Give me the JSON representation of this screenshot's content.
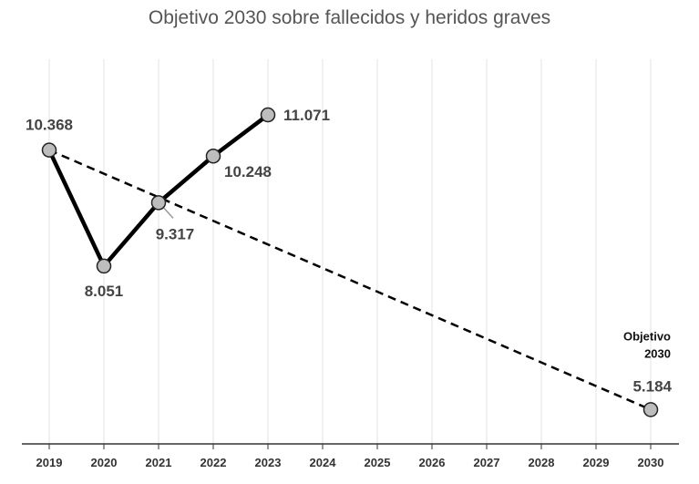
{
  "chart_data": {
    "type": "line",
    "title": "Objetivo 2030 sobre fallecidos y heridos graves",
    "x": [
      "2019",
      "2020",
      "2021",
      "2022",
      "2023",
      "2024",
      "2025",
      "2026",
      "2027",
      "2028",
      "2029",
      "2030"
    ],
    "series": [
      {
        "style": "solid",
        "points": [
          {
            "x": "2019",
            "y": 10368,
            "label": "10.368"
          },
          {
            "x": "2020",
            "y": 8051,
            "label": "8.051"
          },
          {
            "x": "2021",
            "y": 9317,
            "label": "9.317"
          },
          {
            "x": "2022",
            "y": 10248,
            "label": "10.248"
          },
          {
            "x": "2023",
            "y": 11071,
            "label": "11.071"
          }
        ]
      },
      {
        "style": "dashed",
        "points": [
          {
            "x": "2019",
            "y": 10368
          },
          {
            "x": "2030",
            "y": 5184,
            "label": "5.184"
          }
        ]
      }
    ],
    "annotation": {
      "line1": "Objetivo",
      "line2": "2030"
    },
    "ylim": [
      4500,
      12000
    ],
    "grid": "vertical",
    "colors": {
      "line": "#000000",
      "marker_fill": "#bdbdbd",
      "grid": "#e3e3e3",
      "axis": "#333333"
    }
  }
}
